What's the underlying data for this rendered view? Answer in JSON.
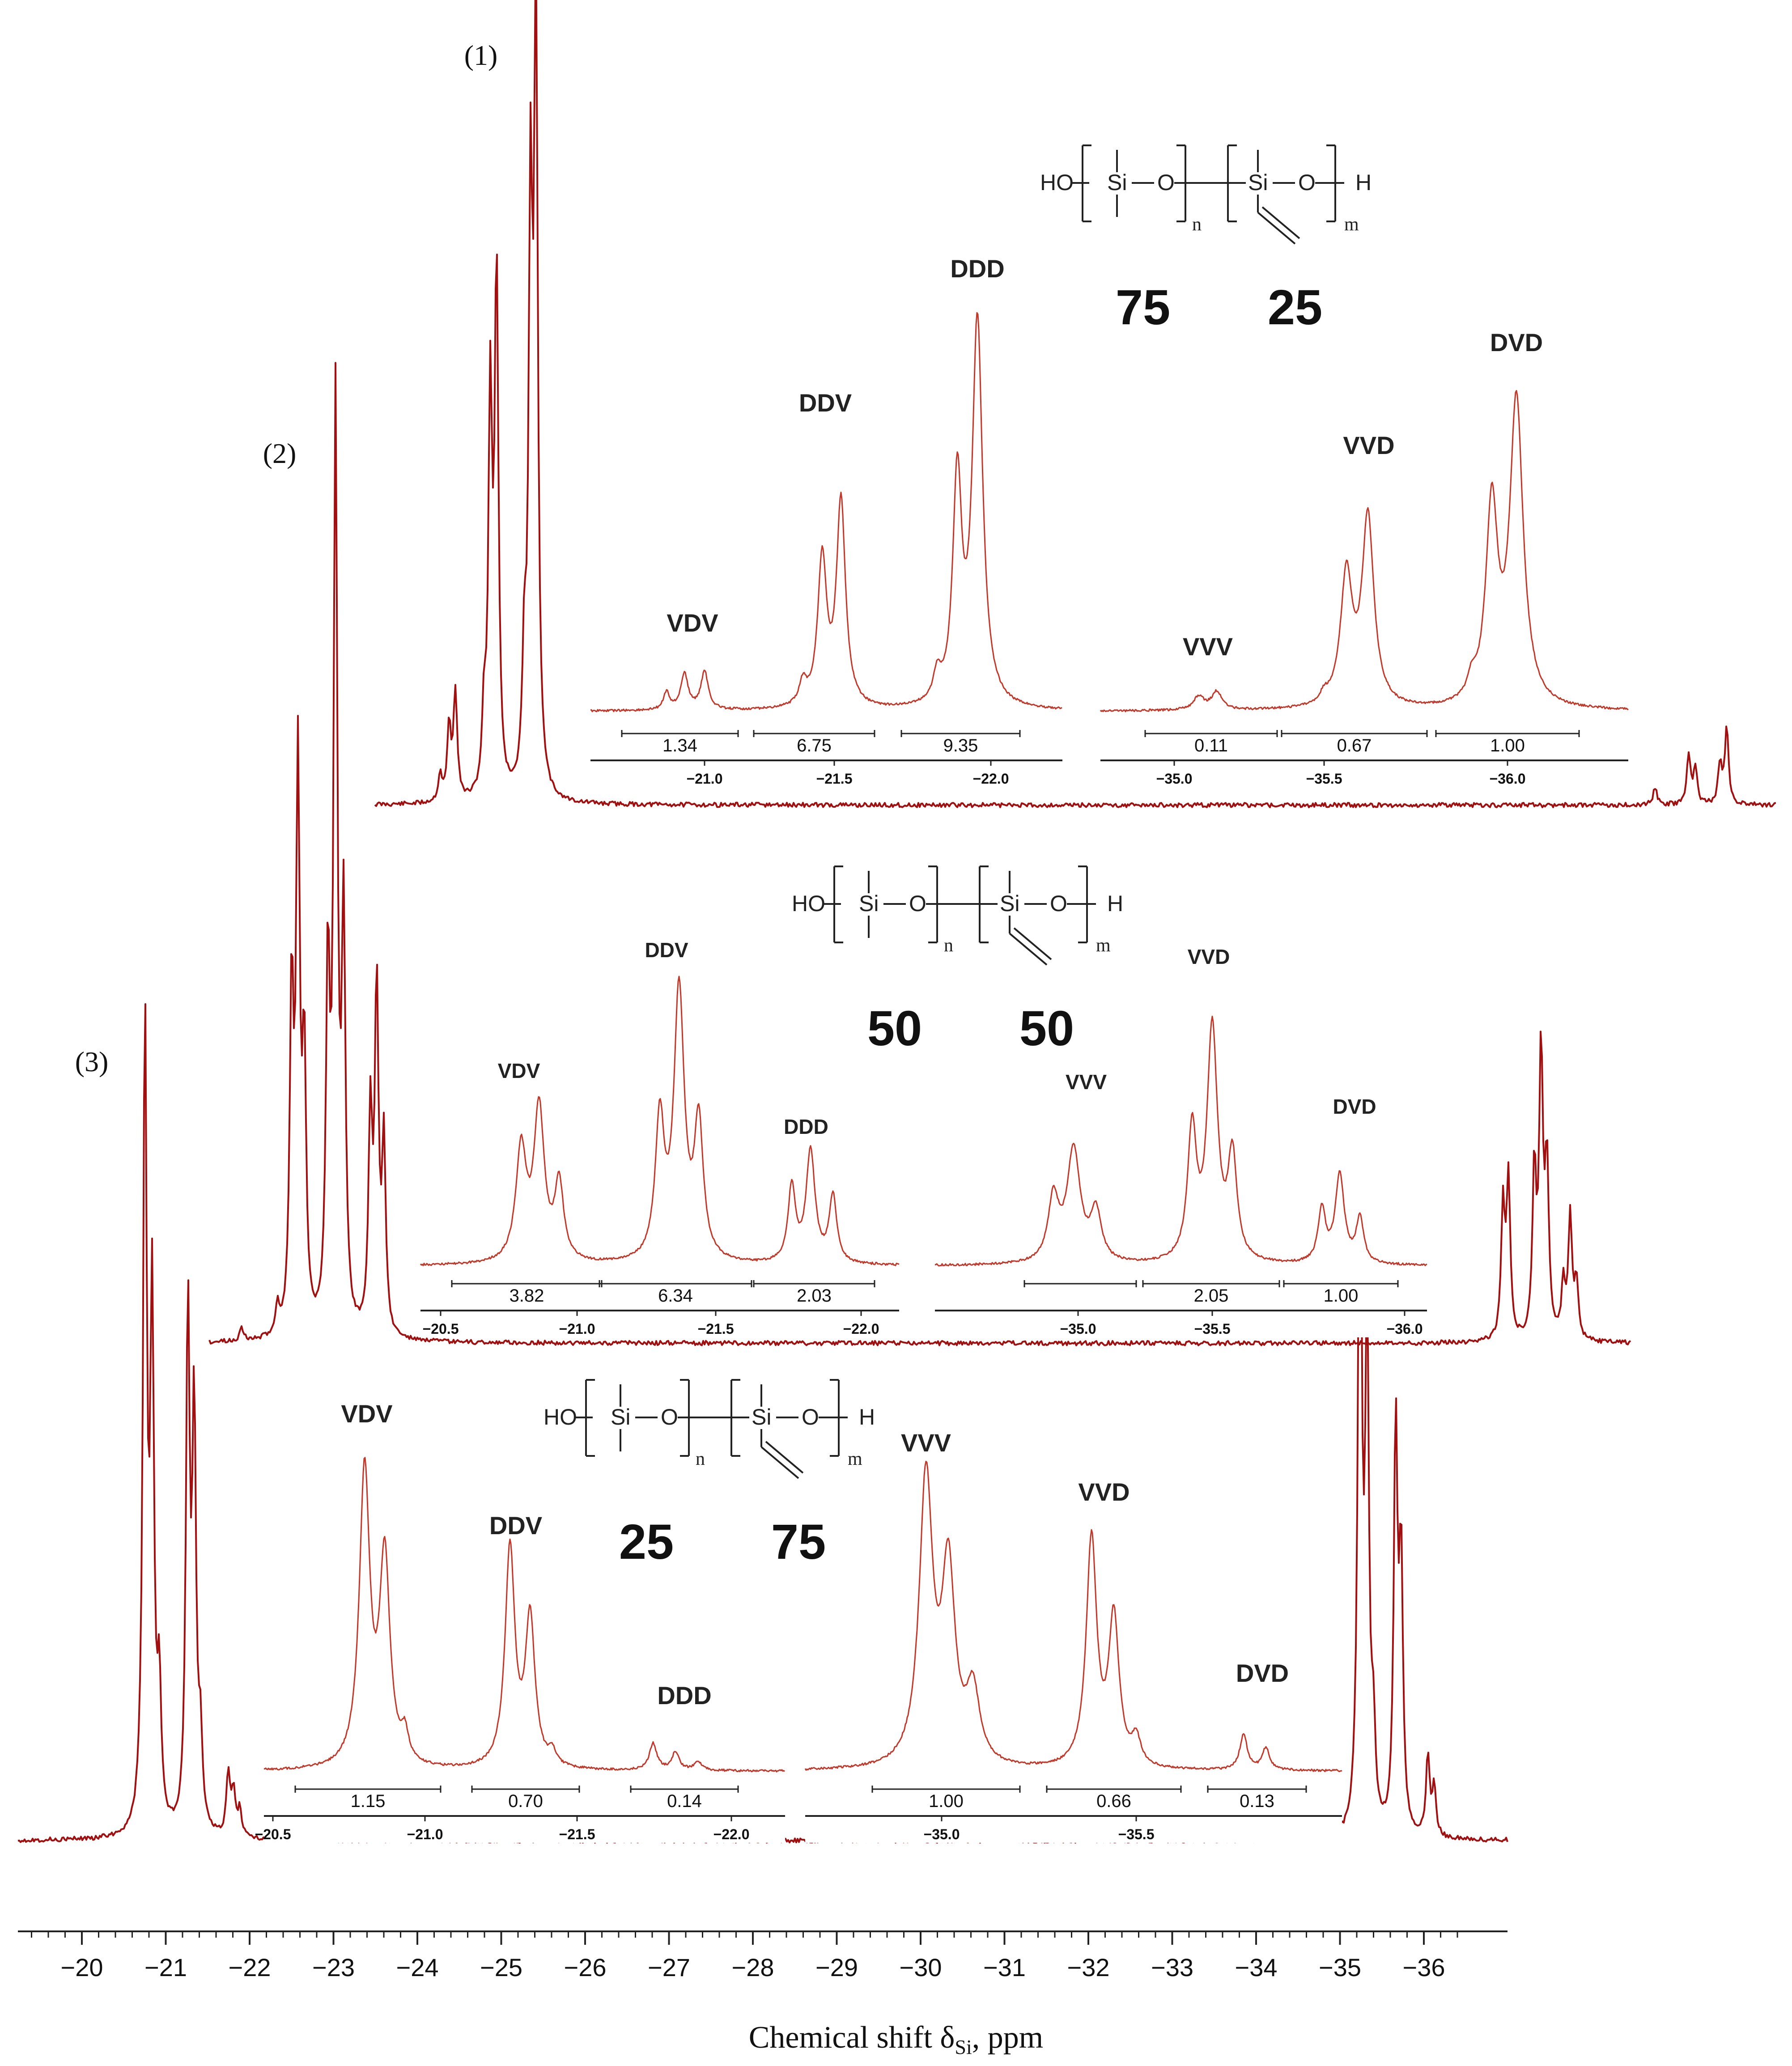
{
  "chart_data": {
    "type": "line",
    "title": "",
    "xlabel": "Chemical shift δSi, ppm",
    "xlabel_main": "Chemical shift δ",
    "xlabel_sub": "Si",
    "xlabel_tail": ", ppm",
    "ylabel": "",
    "x_axis": {
      "min": -20,
      "max": -36,
      "reversed": true,
      "ticks": [
        "−20",
        "−21",
        "−22",
        "−23",
        "−24",
        "−25",
        "−26",
        "−27",
        "−28",
        "−29",
        "−30",
        "−31",
        "−32",
        "−33",
        "−34",
        "−35",
        "−36"
      ]
    },
    "trace_color": "#a01010",
    "spectra": [
      {
        "name": "(1)",
        "composition": [
          "75",
          "25"
        ],
        "peaks_main": [
          -23.8,
          -24.4,
          -24.6,
          -25.0,
          -25.2
        ],
        "peaks_minor": [
          -35.3,
          -35.6
        ],
        "insets": [
          {
            "region": "D-centered",
            "axis_ticks": [
              "−21.0",
              "−21.5",
              "−22.0"
            ],
            "labels": [
              "VDV",
              "DDV",
              "DDD"
            ],
            "integrals": [
              "1.34",
              "6.75",
              "9.35"
            ]
          },
          {
            "region": "V-centered",
            "axis_ticks": [
              "−35.0",
              "−35.5",
              "−36.0"
            ],
            "labels": [
              "VVV",
              "VVD",
              "DVD"
            ],
            "integrals": [
              "0.11",
              "0.67",
              "1.00"
            ]
          }
        ]
      },
      {
        "name": "(2)",
        "composition": [
          "50",
          "50"
        ],
        "peaks_main": [
          -22.3,
          -22.9,
          -23.4
        ],
        "peaks_minor": [
          -34.0,
          -34.4,
          -34.7
        ],
        "insets": [
          {
            "region": "D-centered",
            "axis_ticks": [
              "−20.5",
              "−21.0",
              "−21.5",
              "−22.0"
            ],
            "labels": [
              "VDV",
              "DDV",
              "DDD"
            ],
            "integrals": [
              "3.82",
              "6.34",
              "2.03"
            ]
          },
          {
            "region": "V-centered",
            "axis_ticks": [
              "−35.0",
              "−35.5",
              "−36.0"
            ],
            "labels": [
              "VVV",
              "VVD",
              "DVD"
            ],
            "integrals": [
              "",
              "2.05",
              "1.00"
            ]
          }
        ]
      },
      {
        "name": "(3)",
        "composition": [
          "25",
          "75"
        ],
        "peaks_main": [
          -20.8,
          -21.2,
          -21.6
        ],
        "peaks_minor": [
          -34.9,
          -35.3,
          -35.6
        ],
        "insets": [
          {
            "region": "D-centered",
            "axis_ticks": [
              "−20.5",
              "−21.0",
              "−21.5",
              "−22.0"
            ],
            "labels": [
              "VDV",
              "DDV",
              "DDD"
            ],
            "integrals": [
              "1.15",
              "0.70",
              "0.14"
            ]
          },
          {
            "region": "V-centered",
            "axis_ticks": [
              "−35.0",
              "−35.5"
            ],
            "labels": [
              "VVV",
              "VVD",
              "DVD"
            ],
            "integrals": [
              "1.00",
              "0.66",
              "0.13"
            ]
          }
        ]
      }
    ],
    "structure_text": {
      "ho": "HO",
      "si": "Si",
      "o": "O",
      "h": "H",
      "n": "n",
      "m": "m"
    },
    "grid": false,
    "legend": "none"
  }
}
